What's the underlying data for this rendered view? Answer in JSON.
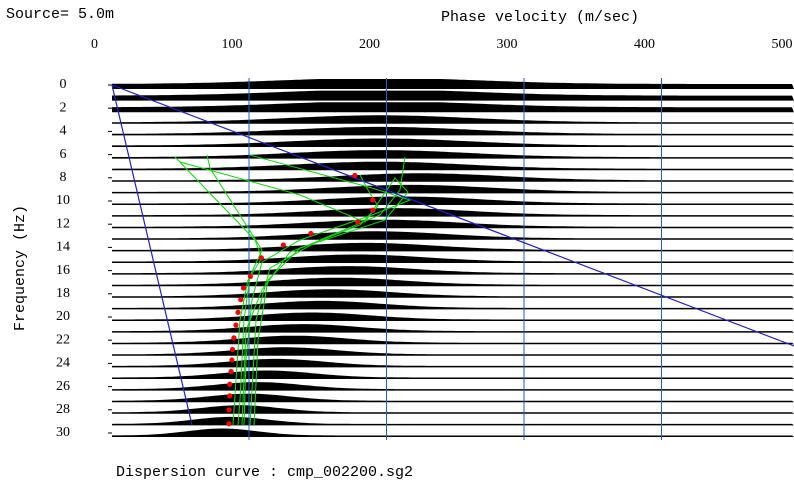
{
  "chart_data": {
    "type": "scatter",
    "title": "Dispersion curve : cmp_002200.sg2",
    "source": "Source= 5.0m",
    "xlabel": "Phase velocity (m/sec)",
    "ylabel": "Frequency (Hz)",
    "xlim": [
      0,
      500
    ],
    "xticks": [
      0,
      100,
      200,
      300,
      400,
      500
    ],
    "ylim": [
      0,
      30
    ],
    "yticks": [
      0,
      2,
      4,
      6,
      8,
      10,
      12,
      14,
      16,
      18,
      20,
      22,
      24,
      26,
      28,
      30
    ],
    "grid": true,
    "grid_color": "#1f5fd0",
    "series": [
      {
        "color": "#ff0000",
        "frequency": [
          7.8,
          9.9,
          10.8,
          11.8,
          12.8,
          13.8,
          14.9,
          16.5,
          17.5,
          18.5,
          19.6,
          20.7,
          21.8,
          22.8,
          23.7,
          24.7,
          25.8,
          26.8,
          28,
          29.2
        ],
        "velocity": [
          177,
          190,
          190,
          179,
          145,
          125,
          109,
          101,
          96,
          94,
          92,
          90.5,
          89,
          88,
          87.6,
          87,
          86,
          86,
          85.5,
          85.5
        ]
      }
    ]
  }
}
